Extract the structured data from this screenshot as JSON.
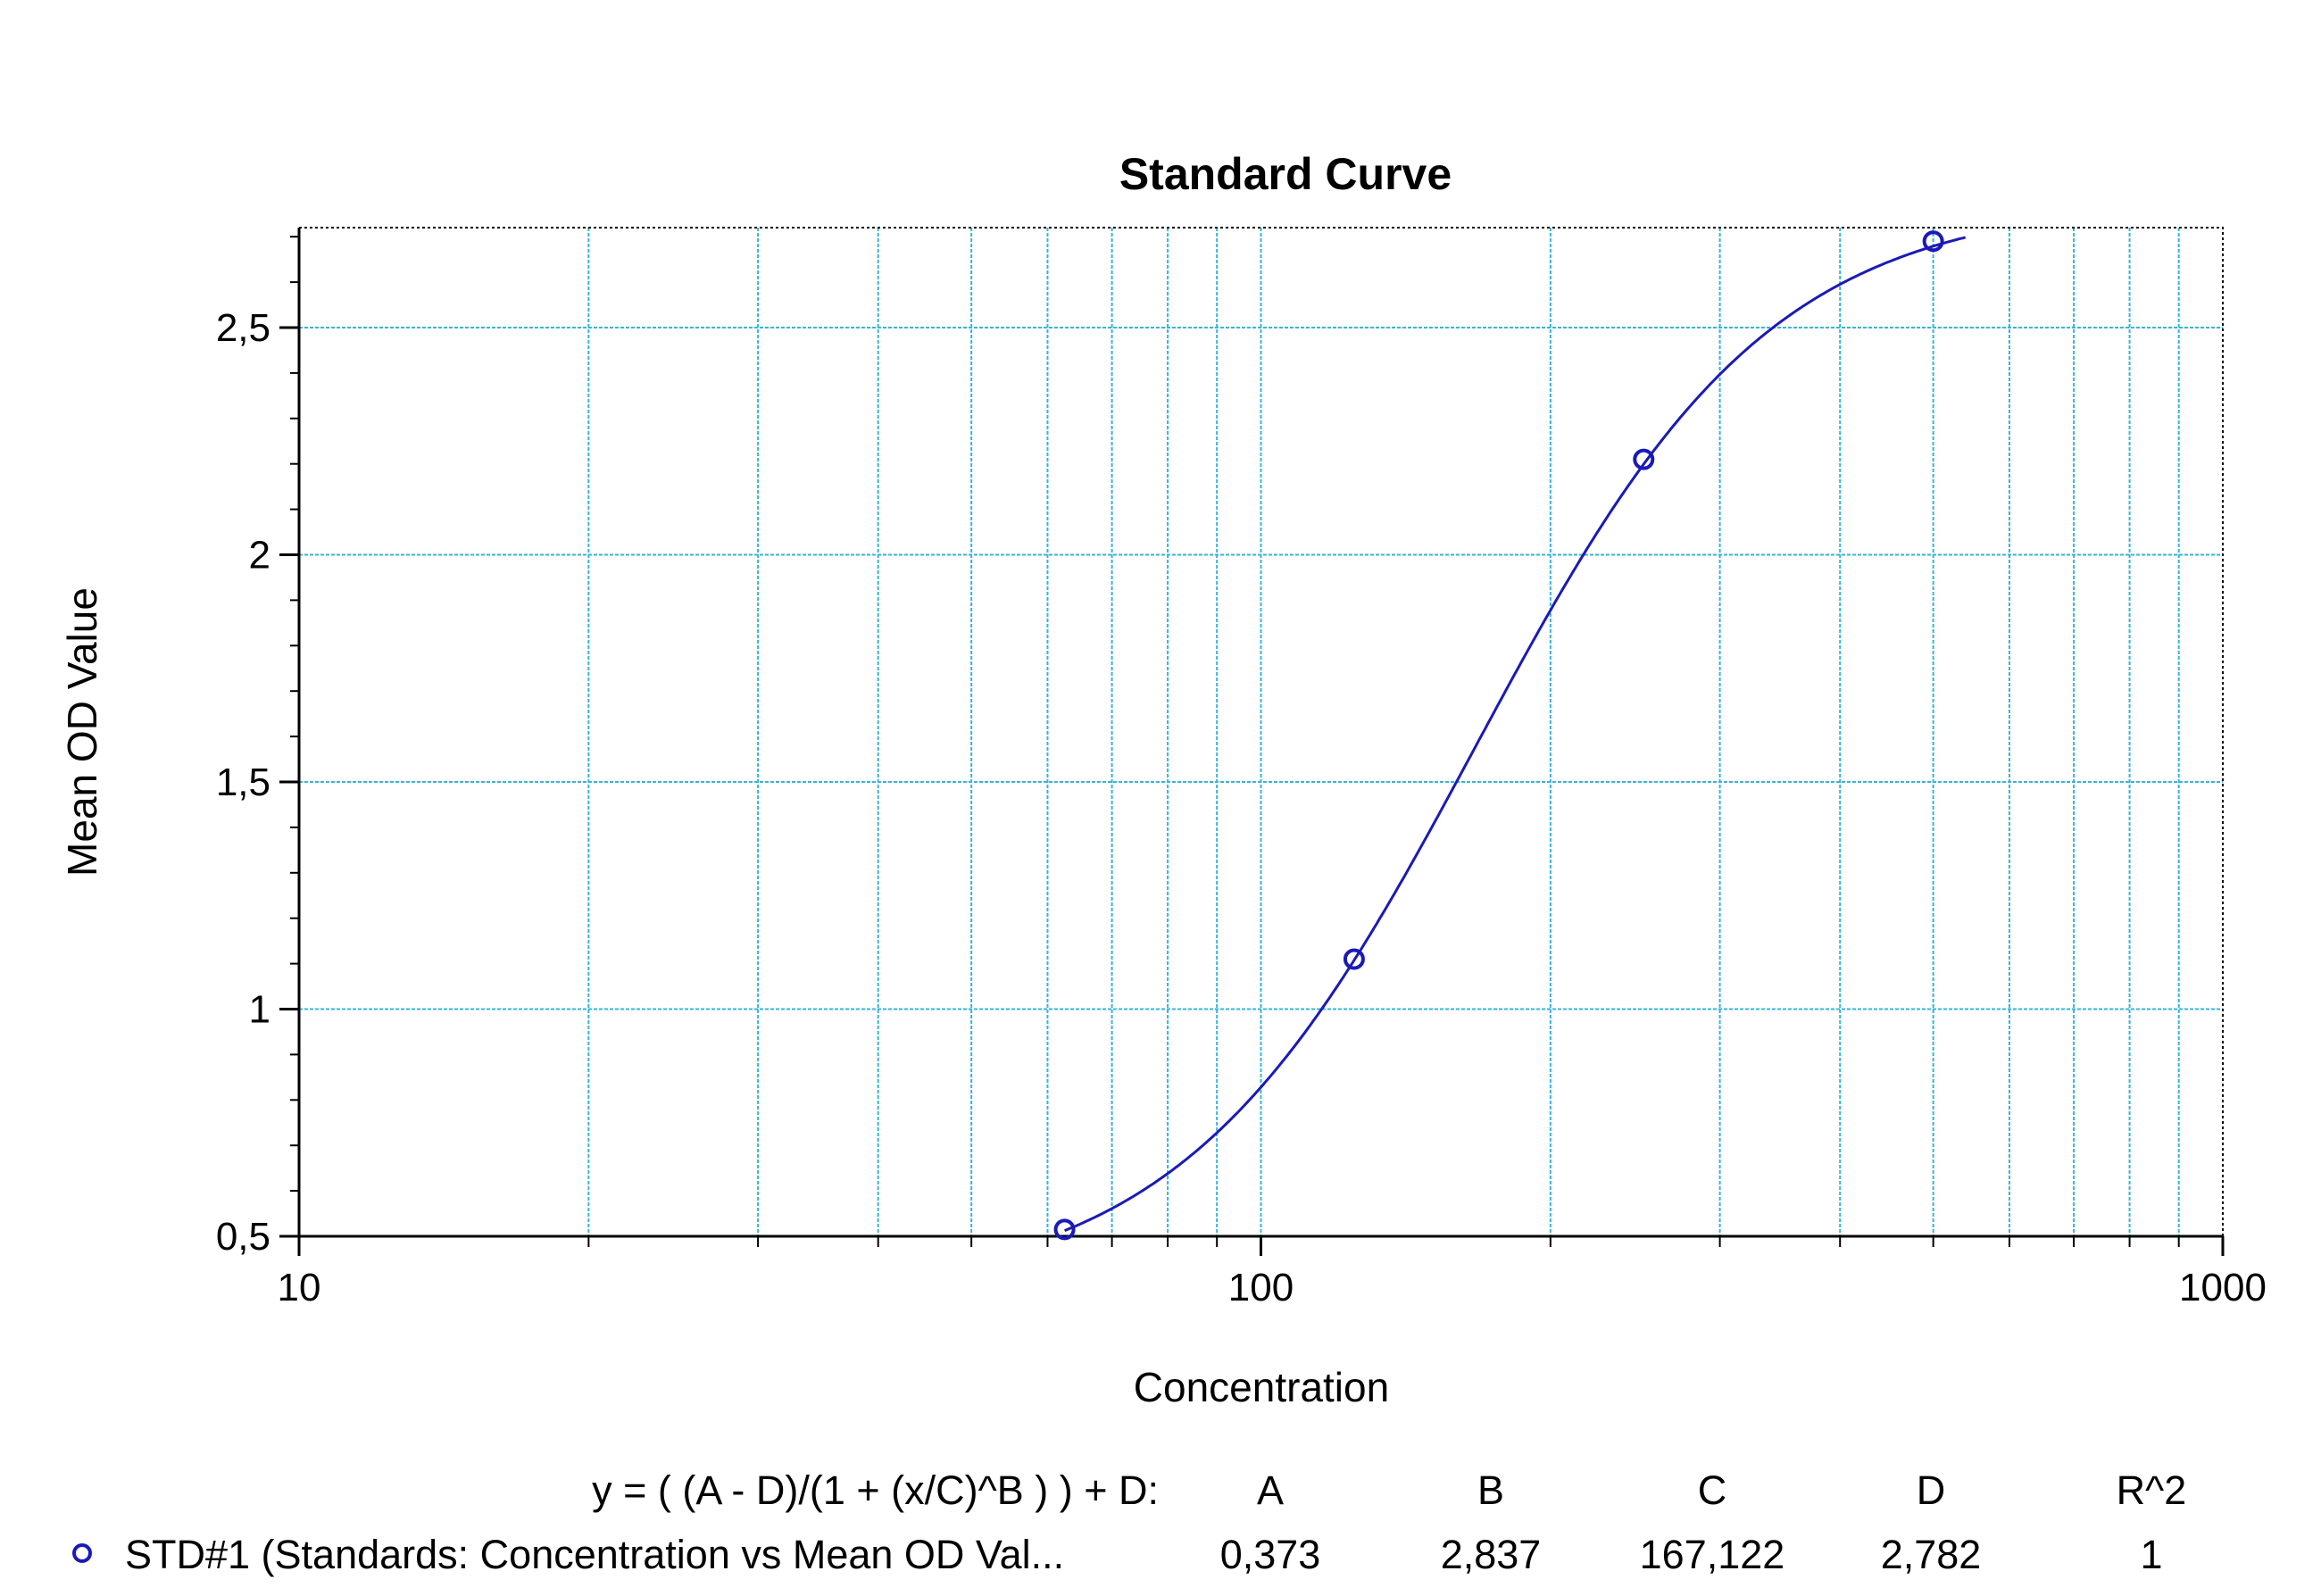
{
  "chart_data": {
    "type": "scatter",
    "title": "Standard Curve",
    "xlabel": "Concentration",
    "ylabel": "Mean OD Value",
    "x_scale": "log",
    "xlim": [
      10,
      1000
    ],
    "ylim": [
      0.5,
      2.72
    ],
    "x_ticks": [
      {
        "value": 10,
        "label": "10"
      },
      {
        "value": 100,
        "label": "100"
      },
      {
        "value": 1000,
        "label": "1000"
      }
    ],
    "y_ticks": [
      {
        "value": 0.5,
        "label": "0,5"
      },
      {
        "value": 1,
        "label": "1"
      },
      {
        "value": 1.5,
        "label": "1,5"
      },
      {
        "value": 2,
        "label": "2"
      },
      {
        "value": 2.5,
        "label": "2,5"
      }
    ],
    "grid": true,
    "legend_position": "bottom",
    "series": [
      {
        "name": "STD#1 (Standards: Concentration vs Mean OD Val...",
        "color": "#1a1ab8",
        "marker": "circle",
        "points": [
          {
            "x": 62.5,
            "y": 0.515
          },
          {
            "x": 125,
            "y": 1.11
          },
          {
            "x": 250,
            "y": 2.21
          },
          {
            "x": 500,
            "y": 2.69
          }
        ],
        "fit": {
          "model": "4PL",
          "A": 0.373,
          "B": 2.837,
          "C": 167.122,
          "D": 2.782,
          "x_range": [
            62.5,
            540
          ]
        }
      }
    ],
    "fit_table": {
      "equation": "y = ( (A - D)/(1 + (x/C)^B ) ) + D:",
      "headers": [
        "A",
        "B",
        "C",
        "D",
        "R^2"
      ],
      "values": [
        "0,373",
        "2,837",
        "167,122",
        "2,782",
        "1"
      ]
    }
  },
  "colors": {
    "grid": "#37b4d9",
    "series": "#1a1ab8",
    "axis": "#000000"
  }
}
